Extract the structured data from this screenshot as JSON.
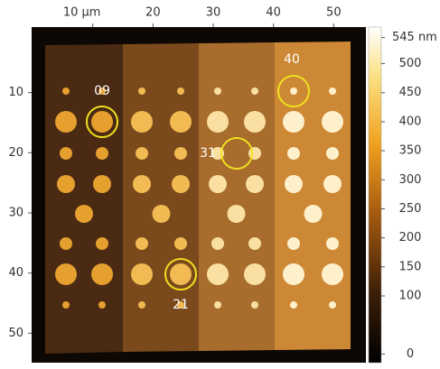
{
  "chart_data": {
    "type": "image",
    "xlim": [
      0,
      55.5
    ],
    "xticks": [
      {
        "value": 10,
        "label": "10 µm"
      },
      20,
      30,
      40,
      50
    ],
    "ylim": [
      0,
      55.5
    ],
    "yticks": [
      10,
      20,
      30,
      40,
      50
    ],
    "colorbar": {
      "clim": [
        -15,
        563
      ],
      "ticks": [
        0,
        100,
        150,
        200,
        250,
        300,
        350,
        400,
        450,
        500,
        {
          "value": 545,
          "label": "545 nm"
        }
      ]
    },
    "annotations": [
      "09",
      "40",
      "31",
      "21"
    ]
  }
}
